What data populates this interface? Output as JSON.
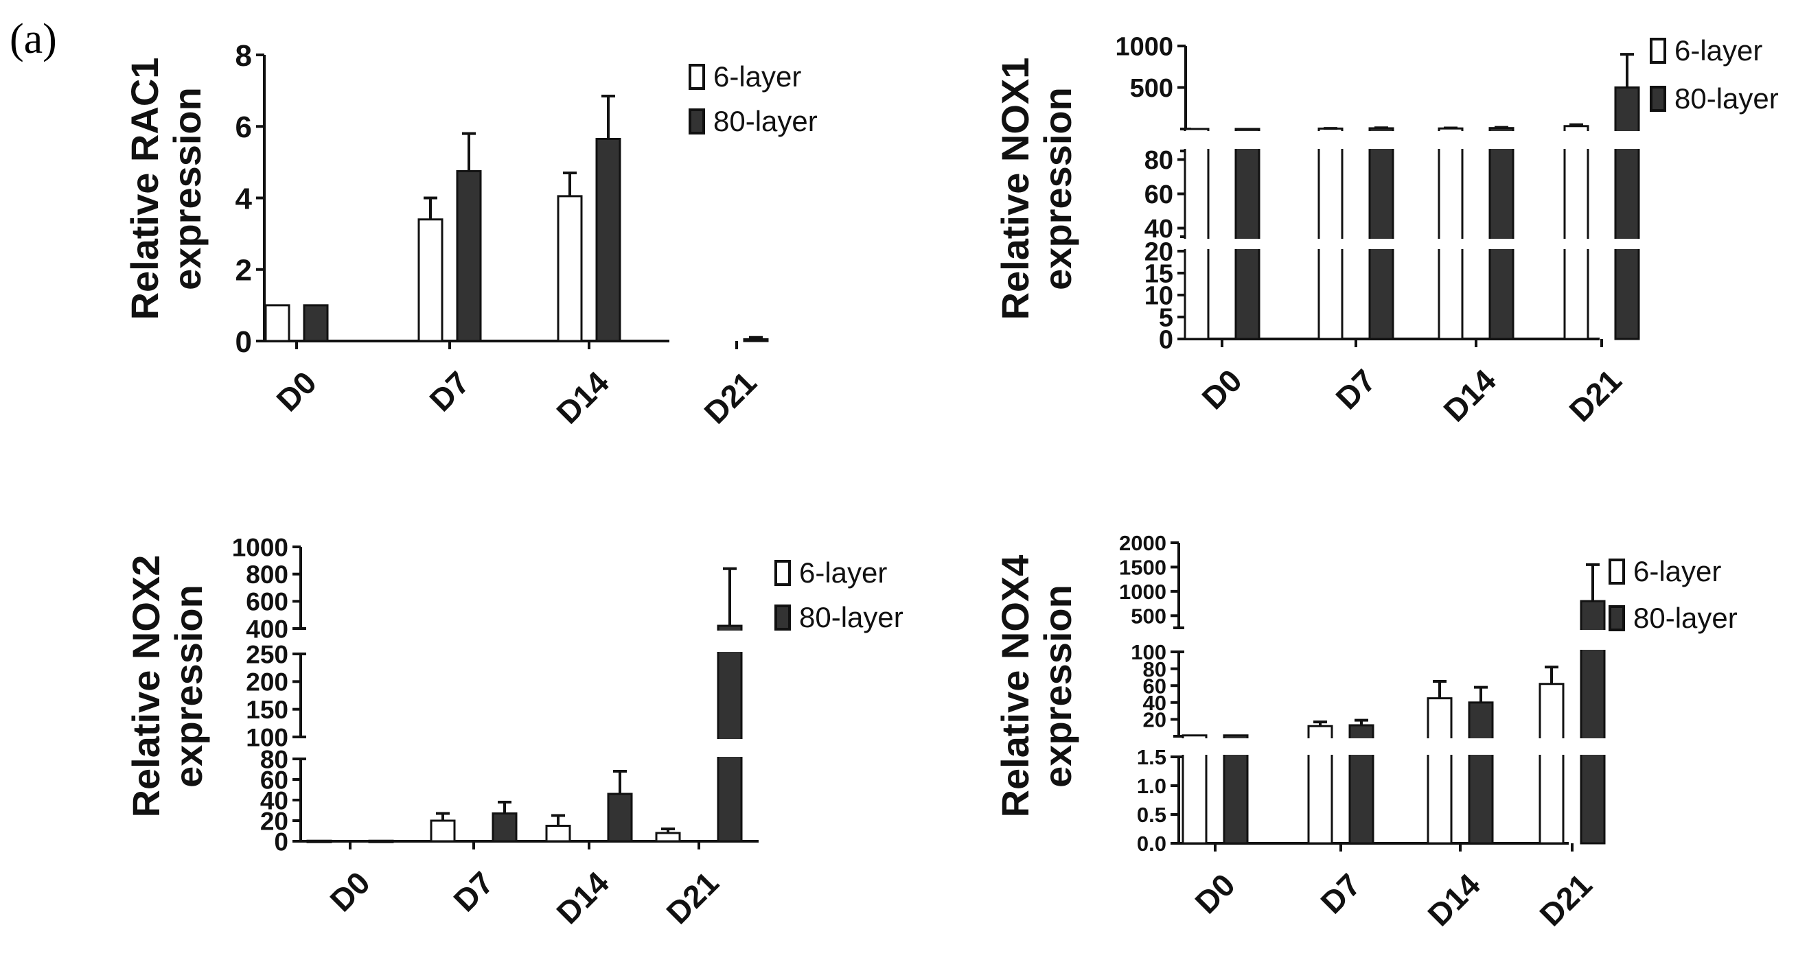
{
  "figure": {
    "panel_label": "(a)"
  },
  "colors": {
    "six_layer": "#ffffff",
    "eighty_layer": "#333333",
    "axis": "#111111"
  },
  "chart_data": [
    {
      "type": "bar",
      "ylabel_line1": "Relative RAC1",
      "ylabel_line2": "expression",
      "categories": [
        "D0",
        "D7",
        "D14",
        "D21"
      ],
      "series": [
        {
          "name": "6-layer",
          "values": [
            1.0,
            3.4,
            4.05,
            0
          ],
          "errors": [
            0,
            0.6,
            0.65,
            0
          ]
        },
        {
          "name": "80-layer",
          "values": [
            1.0,
            4.75,
            5.65,
            0.05
          ],
          "errors": [
            0,
            1.05,
            1.2,
            0.05
          ]
        }
      ],
      "axis_segments": [
        {
          "min": 0,
          "max": 8,
          "ticks": [
            0,
            2,
            4,
            6,
            8
          ],
          "labels": [
            "0",
            "2",
            "4",
            "6",
            "8"
          ]
        }
      ]
    },
    {
      "type": "bar",
      "ylabel_line1": "Relative NOX1",
      "ylabel_line2": "expression",
      "categories": [
        "D0",
        "D7",
        "D14",
        "D21"
      ],
      "series": [
        {
          "name": "6-layer",
          "values": [
            0.5,
            5,
            6.5,
            35
          ],
          "errors": [
            0,
            2.5,
            5.5,
            17
          ]
        },
        {
          "name": "80-layer",
          "values": [
            0.5,
            8.5,
            11,
            500
          ],
          "errors": [
            0,
            6,
            9,
            400
          ]
        }
      ],
      "axis_segments": [
        {
          "min": 0,
          "max": 20,
          "ticks": [
            0,
            5,
            10,
            15,
            20
          ],
          "labels": [
            "0",
            "5",
            "10",
            "15",
            "20"
          ]
        },
        {
          "min": 35,
          "max": 85,
          "ticks": [
            40,
            60,
            80
          ],
          "labels": [
            "40",
            "60",
            "80"
          ]
        },
        {
          "min": 0,
          "max": 1000,
          "ticks": [
            500,
            1000
          ],
          "labels": [
            "500",
            "1000"
          ]
        }
      ]
    },
    {
      "type": "bar",
      "ylabel_line1": "Relative NOX2",
      "ylabel_line2": "expression",
      "categories": [
        "D0",
        "D7",
        "D14",
        "D21"
      ],
      "series": [
        {
          "name": "6-layer",
          "values": [
            0.5,
            20,
            15,
            8
          ],
          "errors": [
            0,
            7,
            10,
            4
          ]
        },
        {
          "name": "80-layer",
          "values": [
            0.5,
            27,
            46,
            420
          ],
          "errors": [
            0,
            11,
            22,
            420
          ]
        }
      ],
      "axis_segments": [
        {
          "min": 0,
          "max": 80,
          "ticks": [
            0,
            20,
            40,
            60,
            80
          ],
          "labels": [
            "0",
            "20",
            "40",
            "60",
            "80"
          ]
        },
        {
          "min": 100,
          "max": 250,
          "ticks": [
            100,
            150,
            200,
            250
          ],
          "labels": [
            "100",
            "150",
            "200",
            "250"
          ]
        },
        {
          "min": 400,
          "max": 1000,
          "ticks": [
            400,
            600,
            800,
            1000
          ],
          "labels": [
            "400",
            "600",
            "800",
            "1000"
          ]
        }
      ]
    },
    {
      "type": "bar",
      "ylabel_line1": "Relative NOX4",
      "ylabel_line2": "expression",
      "categories": [
        "D0",
        "D7",
        "D14",
        "D21"
      ],
      "series": [
        {
          "name": "6-layer",
          "values": [
            1.0,
            12,
            45,
            62
          ],
          "errors": [
            0,
            5,
            20,
            20
          ]
        },
        {
          "name": "80-layer",
          "values": [
            1.0,
            13,
            40,
            800
          ],
          "errors": [
            0,
            6,
            18,
            750
          ]
        }
      ],
      "axis_segments": [
        {
          "min": 0,
          "max": 1.5,
          "ticks": [
            0,
            0.5,
            1.0,
            1.5
          ],
          "labels": [
            "0.0",
            "0.5",
            "1.0",
            "1.5"
          ]
        },
        {
          "min": 0,
          "max": 100,
          "ticks": [
            20,
            40,
            60,
            80,
            100
          ],
          "labels": [
            "20",
            "40",
            "60",
            "80",
            "100"
          ]
        },
        {
          "min": 250,
          "max": 2000,
          "ticks": [
            500,
            1000,
            1500,
            2000
          ],
          "labels": [
            "500",
            "1000",
            "1500",
            "2000"
          ]
        }
      ]
    }
  ]
}
